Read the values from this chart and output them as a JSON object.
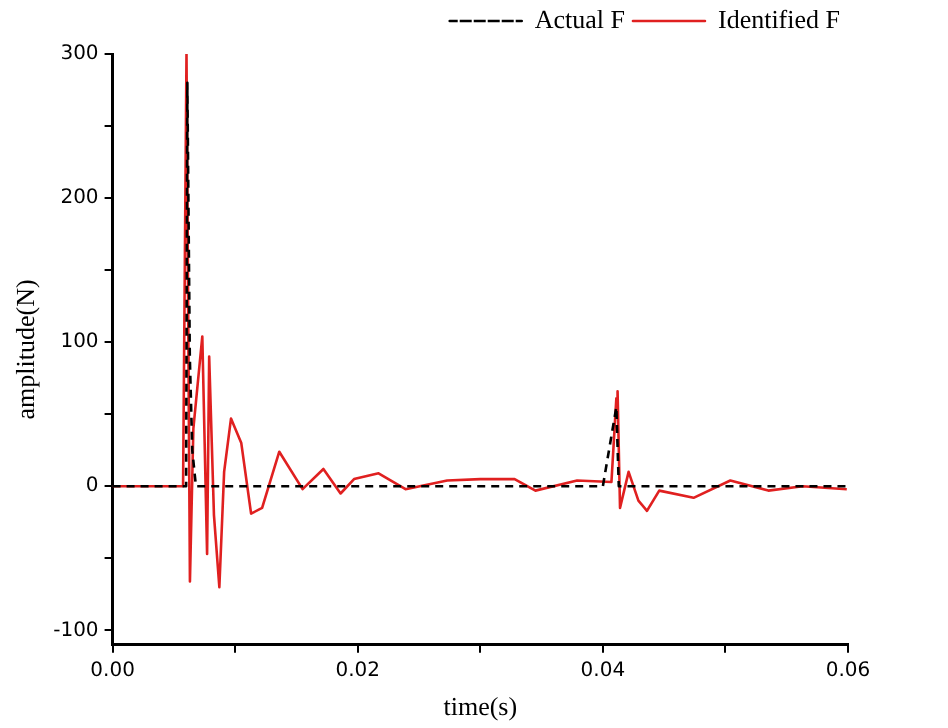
{
  "chart_data": {
    "type": "line",
    "xlabel": "time(s)",
    "ylabel": "amplitude(N)",
    "xlim": [
      0,
      0.06
    ],
    "ylim": [
      -110,
      300
    ],
    "xticks": [
      {
        "value": 0,
        "label": "0.00"
      },
      {
        "value": 0.01,
        "label": null
      },
      {
        "value": 0.02,
        "label": "0.02"
      },
      {
        "value": 0.03,
        "label": null
      },
      {
        "value": 0.04,
        "label": "0.04"
      },
      {
        "value": 0.05,
        "label": null
      },
      {
        "value": 0.06,
        "label": "0.06"
      }
    ],
    "yticks": [
      -100,
      {
        "value": -50,
        "label": null
      },
      0,
      {
        "value": 50,
        "label": null
      },
      100,
      {
        "value": 150,
        "label": null
      },
      200,
      {
        "value": 250,
        "label": null
      },
      300
    ],
    "grid": false,
    "legend": "top right",
    "marker": "none",
    "series": [
      {
        "name": "Actual F",
        "color": "#000000",
        "line_style": "dashed",
        "x": [
          0,
          0.006,
          0.0061,
          0.0063,
          0.0065,
          0.0068,
          0.04,
          0.0411,
          0.0413,
          0.0415,
          0.06
        ],
        "values": [
          0,
          0,
          280,
          90,
          25,
          0,
          0,
          55,
          0,
          0,
          0
        ]
      },
      {
        "name": "Identified F",
        "color": "#e02020",
        "line_style": "solid",
        "x": [
          0,
          0.00575,
          0.00603,
          0.00631,
          0.00659,
          0.00732,
          0.00771,
          0.00788,
          0.00827,
          0.00871,
          0.0091,
          0.00966,
          0.0105,
          0.0113,
          0.0122,
          0.0136,
          0.0155,
          0.0172,
          0.0186,
          0.0197,
          0.0217,
          0.0239,
          0.0273,
          0.03,
          0.0328,
          0.0345,
          0.0379,
          0.0407,
          0.0411,
          0.0412,
          0.0414,
          0.0421,
          0.0429,
          0.0436,
          0.0446,
          0.0474,
          0.0504,
          0.0535,
          0.0563,
          0.0599
        ],
        "values": [
          0,
          0,
          300,
          -66,
          40,
          104,
          -47,
          90,
          -20,
          -70,
          10,
          47,
          30,
          -19,
          -15,
          24,
          -2,
          12,
          -5,
          5,
          9,
          -2,
          4,
          5,
          5,
          -3,
          4,
          3,
          61,
          66,
          -15,
          10,
          -10,
          -17,
          -3,
          -8,
          4,
          -3,
          0,
          -2
        ]
      }
    ]
  }
}
